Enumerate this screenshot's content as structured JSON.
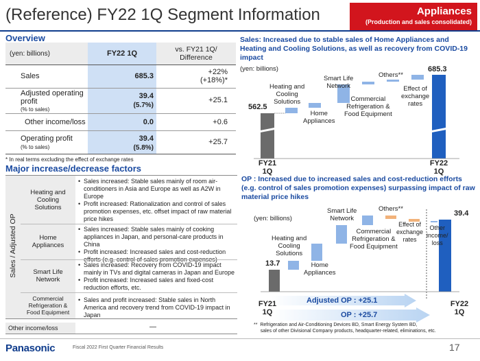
{
  "header": {
    "title": "(Reference) FY22 1Q Segment Information",
    "badge_title": "Appliances",
    "badge_sub": "(Production and sales consolidated)"
  },
  "overview": {
    "heading": "Overview",
    "col_unit": "(yen: billions)",
    "col_fy22": "FY22 1Q",
    "col_vs": "vs. FY21 1Q/\nDifference",
    "rows": [
      {
        "label": "Sales",
        "sub": "",
        "value": "685.3",
        "value_sub": "",
        "diff": "+22%\n(+18%)*"
      },
      {
        "label": "Adjusted operating\nprofit",
        "sub": "(% to sales)",
        "value": "39.4",
        "value_sub": "(5.7%)",
        "diff": "+25.1"
      },
      {
        "label": "Other income/loss",
        "sub": "",
        "value": "0.0",
        "value_sub": "",
        "diff": "+0.6"
      },
      {
        "label": "Operating profit",
        "sub": "(% to sales)",
        "value": "39.4",
        "value_sub": "(5.8%)",
        "diff": "+25.7"
      }
    ],
    "footnote": "* In real terms excluding the effect of exchange rates"
  },
  "factors": {
    "heading": "Major increase/decrease factors",
    "side_label": "Sales / Adjusted OP",
    "rows": [
      {
        "name": "Heating and\nCooling\nSolutions",
        "bullets": [
          "Sales increased: Stable sales mainly of room air-conditioners in Asia and Europe as well as A2W in Europe",
          "Profit increased: Rationalization and control of sales promotion expenses, etc. offset impact of raw material price hikes"
        ]
      },
      {
        "name": "Home\nAppliances",
        "bullets": [
          "Sales increased: Stable sales mainly of cooking appliances in Japan, and personal-care products in China",
          "Profit increased: Increased sales and cost-reduction efforts (e.g. control of sales promotion expenses)"
        ]
      },
      {
        "name": "Smart Life\nNetwork",
        "bullets": [
          "Sales increased: Recovery from COVID-19 impact mainly in TVs and digital cameras in Japan and Europe",
          "Profit increased: Increased sales and fixed-cost reduction efforts, etc."
        ]
      },
      {
        "name": "Commercial\nRefrigeration &\nFood Equipment",
        "bullets": [
          "Sales and profit increased: Stable sales in North America and recovery trend from COVID-19 impact in Japan"
        ]
      }
    ],
    "other_label": "Other income/loss",
    "other_value": "—"
  },
  "sales_chart": {
    "title": "Sales: Increased due to stable sales of Home Appliances and Heating and Cooling Solutions, as well as recovery from COVID-19 impact",
    "unit": "(yen: billions)",
    "start_label": "FY21\n1Q",
    "end_label": "FY22\n1Q",
    "start_value": "562.5",
    "end_value": "685.3",
    "items": [
      {
        "label": "Heating and\nCooling\nSolutions"
      },
      {
        "label": "Home\nAppliances"
      },
      {
        "label": "Smart Life\nNetwork"
      },
      {
        "label": "Commercial\nRefrigeration &\nFood Equipment"
      },
      {
        "label": "Others**"
      },
      {
        "label": "Effect of\nexchange\nrates"
      }
    ]
  },
  "op_chart": {
    "title": "OP : Increased due to increased sales and cost-reduction efforts (e.g. control of sales promotion expenses) surpassing impact of raw material price hikes",
    "unit": "(yen: billions)",
    "start_label": "FY21\n1Q",
    "end_label": "FY22\n1Q",
    "start_value": "13.7",
    "end_value": "39.4",
    "items": [
      {
        "label": "Heating and\nCooling\nSolutions"
      },
      {
        "label": "Home\nAppliances"
      },
      {
        "label": "Smart Life\nNetwork"
      },
      {
        "label": "Commercial\nRefrigeration &\nFood Equipment"
      },
      {
        "label": "Others**"
      },
      {
        "label": "Effect of\nexchange\nrates"
      },
      {
        "label": "Other\nincome/\nloss"
      }
    ],
    "arrow1": "Adjusted OP : +25.1",
    "arrow2": "OP : +25.7",
    "note": "**  Refrigeration and Air-Conditioning Devices BD, Smart Energy System BD,\n     sales of other Divisional Company products, headquarter-related, eliminations, etc."
  },
  "footer": {
    "logo": "Panasonic",
    "text": "Fiscal 2022 First Quarter Financial Results",
    "page": "17"
  },
  "colors": {
    "accent": "#1a4aa0",
    "badge": "#d2151d",
    "bar_dark": "#1f5fbf",
    "bar_light": "#8fb4e6",
    "bar_gray": "#6b6b6b",
    "bar_orange": "#f2b27a"
  }
}
